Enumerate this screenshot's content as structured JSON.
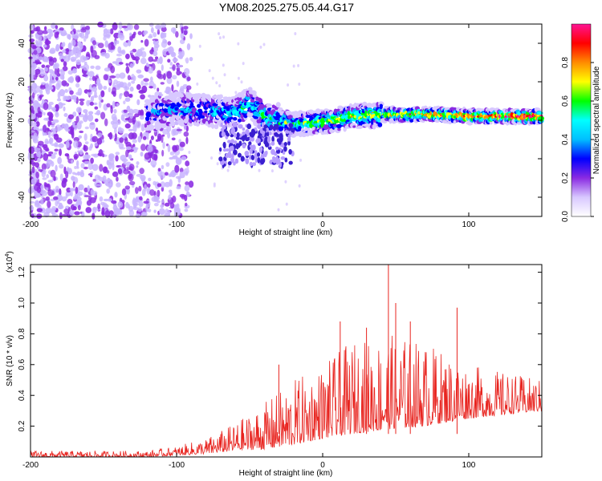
{
  "title": "YM08.2025.275.05.44.G17",
  "chart_data": [
    {
      "type": "heatmap",
      "xlabel": "Height of straight line (km)",
      "ylabel": "Frequency (Hz)",
      "xlim": [
        -200,
        150
      ],
      "ylim": [
        -50,
        50
      ],
      "xticks": [
        -200,
        -100,
        0,
        100
      ],
      "yticks": [
        -40,
        -20,
        0,
        20,
        40
      ],
      "colorbar": {
        "label": "Normalized spectral amplitude",
        "range": [
          0,
          1
        ],
        "ticks": [
          "0.0",
          "0.2",
          "0.4",
          "0.6",
          "0.8"
        ],
        "colors": [
          "#ffffff",
          "#d8c8ff",
          "#8a2be2",
          "#0000ff",
          "#00bfff",
          "#00ffff",
          "#00ff00",
          "#ffff00",
          "#ff8c00",
          "#ff0000",
          "#ff1493"
        ]
      },
      "signal_center_hz": [
        {
          "x": -120,
          "f": 3
        },
        {
          "x": -100,
          "f": 6
        },
        {
          "x": -80,
          "f": 5
        },
        {
          "x": -60,
          "f": 4
        },
        {
          "x": -50,
          "f": 9
        },
        {
          "x": -40,
          "f": 2
        },
        {
          "x": -20,
          "f": -2
        },
        {
          "x": 0,
          "f": -1
        },
        {
          "x": 20,
          "f": 2
        },
        {
          "x": 50,
          "f": 3
        },
        {
          "x": 80,
          "f": 3
        },
        {
          "x": 100,
          "f": 2
        },
        {
          "x": 150,
          "f": 2
        }
      ]
    },
    {
      "type": "line",
      "xlabel": "Height of straight line (km)",
      "ylabel": "SNR (10 * v/v)",
      "scale_label": "(x10",
      "scale_exponent": "4",
      "xlim": [
        -200,
        150
      ],
      "ylim": [
        0,
        1.25
      ],
      "xticks": [
        -200,
        -100,
        0,
        100
      ],
      "yticks": [
        "0.2",
        "0.4",
        "0.6",
        "0.8",
        "1.0",
        "1.2"
      ],
      "color": "#e8241f",
      "envelope": [
        {
          "x": -200,
          "low": 0.0,
          "high": 0.04
        },
        {
          "x": -120,
          "low": 0.0,
          "high": 0.04
        },
        {
          "x": -100,
          "low": 0.01,
          "high": 0.07
        },
        {
          "x": -80,
          "low": 0.02,
          "high": 0.12
        },
        {
          "x": -60,
          "low": 0.04,
          "high": 0.22
        },
        {
          "x": -40,
          "low": 0.05,
          "high": 0.35
        },
        {
          "x": -20,
          "low": 0.08,
          "high": 0.5
        },
        {
          "x": 0,
          "low": 0.12,
          "high": 0.6
        },
        {
          "x": 20,
          "low": 0.15,
          "high": 0.75
        },
        {
          "x": 45,
          "low": 0.18,
          "high": 0.8
        },
        {
          "x": 70,
          "low": 0.2,
          "high": 0.75
        },
        {
          "x": 100,
          "low": 0.25,
          "high": 0.6
        },
        {
          "x": 150,
          "low": 0.3,
          "high": 0.5
        }
      ],
      "peaks": [
        {
          "x": -30,
          "y": 0.6
        },
        {
          "x": 12,
          "y": 0.88
        },
        {
          "x": 30,
          "y": 0.84
        },
        {
          "x": 45,
          "y": 1.25
        },
        {
          "x": 50,
          "y": 1.0
        },
        {
          "x": 60,
          "y": 0.88
        },
        {
          "x": 92,
          "y": 0.97
        }
      ]
    }
  ]
}
